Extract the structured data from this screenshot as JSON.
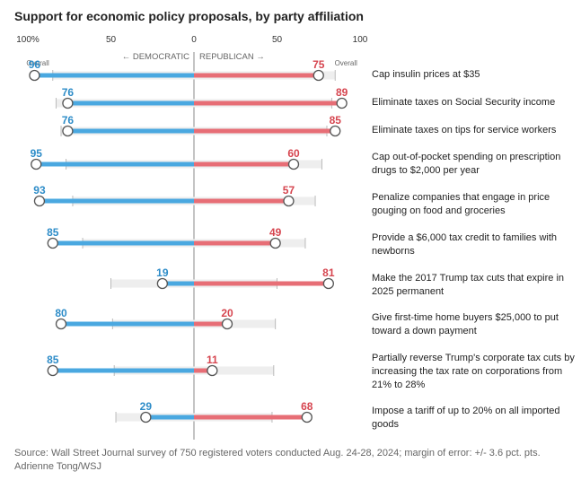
{
  "chart_data": {
    "type": "bar",
    "title": "Support for economic policy proposals, by party affiliation",
    "axis": {
      "ticks": [
        {
          "label": "100%",
          "value": -100
        },
        {
          "label": "50",
          "value": -50
        },
        {
          "label": "0",
          "value": 0
        },
        {
          "label": "50",
          "value": 50
        },
        {
          "label": "100",
          "value": 100
        }
      ],
      "democratic_label": "← DEMOCRATIC",
      "republican_label": "REPUBLICAN →",
      "overall_label": "Overall"
    },
    "colors": {
      "democratic": "#4aa8e0",
      "republican": "#e76e76",
      "dem_text": "#2d8cc8",
      "rep_text": "#d6454f",
      "overall": "#eeeeee",
      "tick": "#bbbbbb"
    },
    "items": [
      {
        "label": "Cap insulin prices at $35",
        "democratic": 96,
        "republican": 75,
        "overall": 85
      },
      {
        "label": "Eliminate taxes on Social Security income",
        "democratic": 76,
        "republican": 89,
        "overall": 83
      },
      {
        "label": "Eliminate taxes on tips for service workers",
        "democratic": 76,
        "republican": 85,
        "overall": 80
      },
      {
        "label": "Cap out-of-pocket spending on prescription drugs to $2,000 per year",
        "democratic": 95,
        "republican": 60,
        "overall": 77
      },
      {
        "label": "Penalize companies that engage in price gouging on food and groceries",
        "democratic": 93,
        "republican": 57,
        "overall": 73
      },
      {
        "label": "Provide a $6,000 tax credit to families with newborns",
        "democratic": 85,
        "republican": 49,
        "overall": 67
      },
      {
        "label": "Make the 2017 Trump tax cuts that expire in 2025 permanent",
        "democratic": 19,
        "republican": 81,
        "overall": 50
      },
      {
        "label": "Give first-time home buyers $25,000 to put toward a down payment",
        "democratic": 80,
        "republican": 20,
        "overall": 49
      },
      {
        "label": "Partially reverse Trump's corporate tax cuts by increasing the tax rate on corporations from 21% to 28%",
        "democratic": 85,
        "republican": 11,
        "overall": 48
      },
      {
        "label": "Impose a tariff of up to 20% on all imported goods",
        "democratic": 29,
        "republican": 68,
        "overall": 47
      }
    ]
  },
  "footer": {
    "source": "Source: Wall Street Journal survey of 750 registered voters conducted Aug. 24-28, 2024; margin of error: +/- 3.6 pct. pts.",
    "credit": "Adrienne Tong/WSJ"
  }
}
